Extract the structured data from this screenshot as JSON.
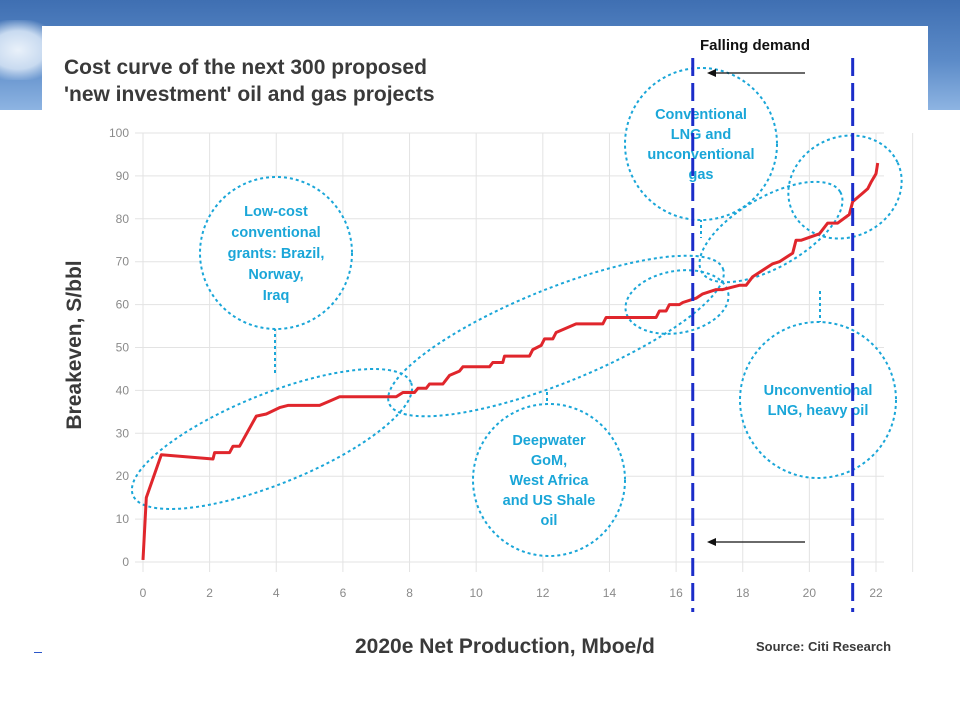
{
  "chart_data": {
    "type": "line",
    "title": "Cost curve of the next 300 proposed\n'new investment' oil and gas projects",
    "xlabel": "2020e Net Production, Mboe/d",
    "ylabel": "Breakeven, S/bbl",
    "source": "Source: Citi Research",
    "xlim": [
      0,
      22
    ],
    "ylim": [
      0,
      100
    ],
    "x_ticks": [
      0,
      2,
      4,
      6,
      8,
      10,
      12,
      14,
      16,
      18,
      20,
      22
    ],
    "y_ticks": [
      0,
      10,
      20,
      30,
      40,
      50,
      60,
      70,
      80,
      90,
      100
    ],
    "grid": true,
    "series": [
      {
        "color": "#e0262c",
        "x": [
          0,
          0.1,
          0.55,
          2.1,
          2.15,
          2.6,
          2.7,
          2.9,
          3.4,
          3.7,
          4.1,
          4.35,
          5.3,
          5.6,
          5.9,
          6.3,
          7.6,
          7.8,
          8.15,
          8.25,
          8.5,
          8.6,
          9.0,
          9.2,
          9.5,
          9.6,
          10.4,
          10.5,
          10.8,
          10.85,
          11.6,
          11.7,
          11.95,
          12.05,
          12.3,
          12.4,
          13.0,
          13.8,
          13.9,
          15.4,
          15.5,
          15.7,
          15.8,
          16.1,
          16.2,
          16.6,
          16.8,
          17.2,
          17.4,
          17.9,
          18.1,
          18.3,
          18.5,
          18.9,
          19.1,
          19.5,
          19.6,
          19.75,
          20.3,
          20.55,
          20.85,
          21.2,
          21.3,
          21.6,
          21.75,
          21.85,
          22.0,
          22.05
        ],
        "y": [
          0.5,
          15,
          25,
          24,
          25.5,
          25.5,
          27,
          27,
          34,
          34.5,
          36,
          36.5,
          36.5,
          37.5,
          38.5,
          38.5,
          38.5,
          39.5,
          39.5,
          40.5,
          40.5,
          41.5,
          41.5,
          43.5,
          44.5,
          45.5,
          45.5,
          46.5,
          46.5,
          48,
          48,
          49.5,
          50.5,
          52,
          52,
          53.5,
          55.5,
          55.5,
          57,
          57,
          58.5,
          58.5,
          60,
          60,
          60.5,
          61.5,
          62.5,
          63.5,
          63.5,
          64.5,
          64.5,
          66.5,
          67.5,
          69.5,
          70,
          72,
          75,
          75,
          76.5,
          79,
          79,
          81,
          84,
          86,
          87,
          88.5,
          90.5,
          93
        ]
      }
    ],
    "bubbles": [
      {
        "text": "Low-cost\nconventional\ngrants: Brazil,\nNorway,\nIraq"
      },
      {
        "text": "Deepwater\nGoM,\nWest Africa\nand US Shale\noil"
      },
      {
        "text": "Conventional\nLNG and\nunconventional\ngas"
      },
      {
        "text": "Unconventional\nLNG, heavy oil"
      }
    ],
    "demand_lines_x": [
      16.5,
      21.3
    ],
    "annotation": "Falling demand",
    "colors": {
      "curve": "#e0262c",
      "bubble": "#1aa6d8",
      "demand_line": "#1b2dc9",
      "grid": "#e3e3e3"
    }
  }
}
